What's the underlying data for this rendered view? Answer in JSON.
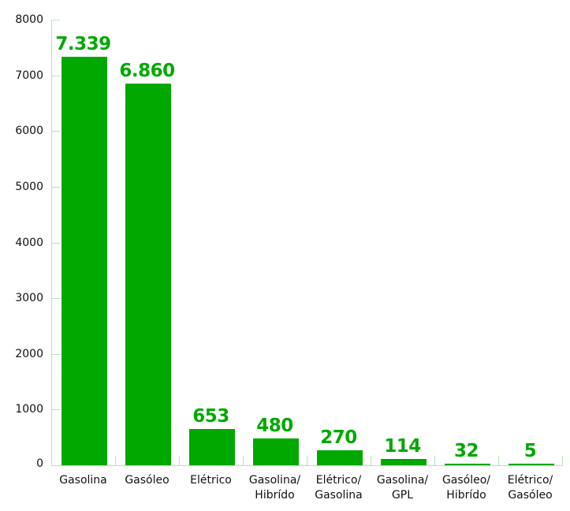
{
  "chart_data": {
    "type": "bar",
    "title": "",
    "xlabel": "",
    "ylabel": "",
    "ylim": [
      0,
      8000
    ],
    "yticks": [
      0,
      1000,
      2000,
      3000,
      4000,
      5000,
      6000,
      7000,
      8000
    ],
    "grid": false,
    "legend": null,
    "categories": [
      "Gasolina",
      "Gasóleo",
      "Elétrico",
      "Gasolina/ Híbrido",
      "Elétrico/ Gasolina",
      "Gasolina/ GPL",
      "Gasóleo/ Hibrído",
      "Elétrico/ Gasóleo"
    ],
    "category_lines": [
      [
        "Gasolina"
      ],
      [
        "Gasóleo"
      ],
      [
        "Elétrico"
      ],
      [
        "Gasolina/",
        "Hibrído"
      ],
      [
        "Elétrico/",
        "Gasolina"
      ],
      [
        "Gasolina/",
        "GPL"
      ],
      [
        "Gasóleo/",
        "Hibrído"
      ],
      [
        "Elétrico/",
        "Gasóleo"
      ]
    ],
    "values": [
      7339,
      6860,
      653,
      480,
      270,
      114,
      32,
      5
    ],
    "data_labels": [
      "7.339",
      "6.860",
      "653",
      "480",
      "270",
      "114",
      "32",
      "5"
    ]
  },
  "colors": {
    "bar": "#00a800",
    "label": "#00a800",
    "axis": "#b8e2b8",
    "text": "#111111"
  }
}
